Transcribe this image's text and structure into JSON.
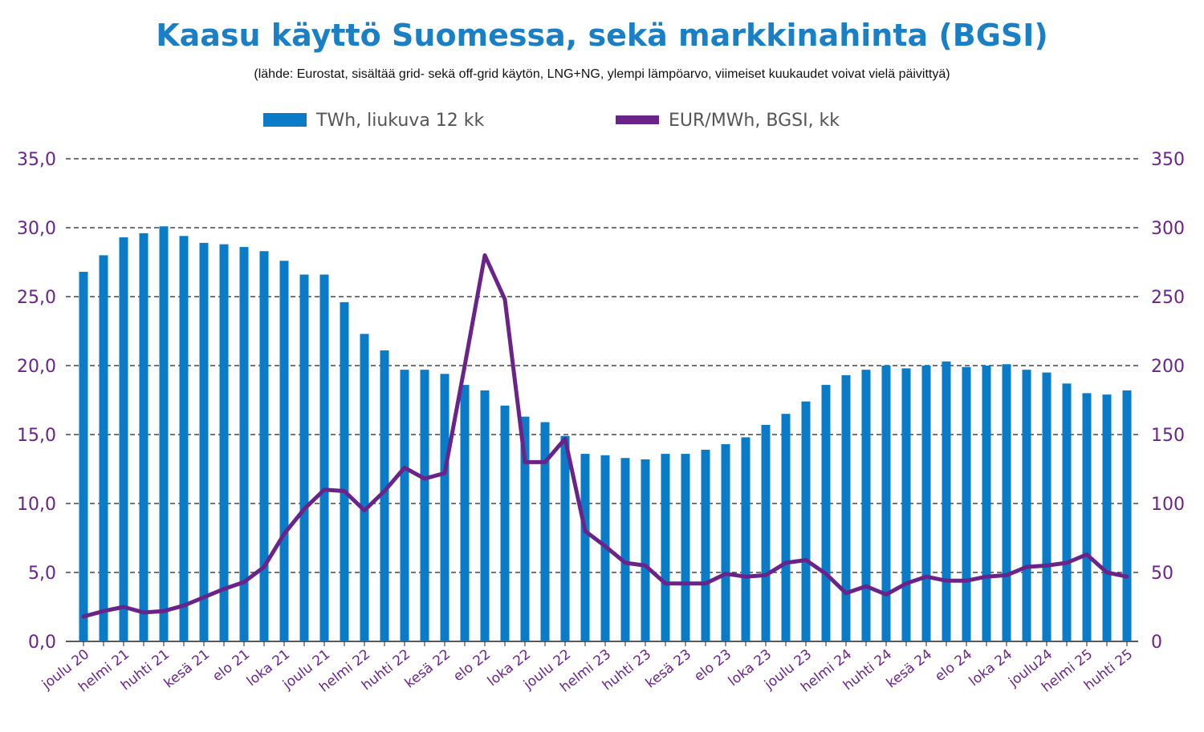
{
  "title": "Kaasu käyttö Suomessa, sekä markkinahinta (BGSI)",
  "subtitle": "(lähde: Eurostat, sisältää grid- sekä off-grid käytön, LNG+NG, ylempi lämpöarvo, viimeiset kuukaudet voivat vielä päivittyä)",
  "colors": {
    "bar": "#0a7bc6",
    "line": "#6a2389",
    "title": "#1a7fc4",
    "axis": "#6a2389"
  },
  "chart_data": {
    "type": "bar",
    "title": "Kaasu käyttö Suomessa, sekä markkinahinta (BGSI)",
    "grid": true,
    "legend_position": "top",
    "y_left": {
      "ylim": [
        0,
        35
      ],
      "ticks": [
        "0,0",
        "5,0",
        "10,0",
        "15,0",
        "20,0",
        "25,0",
        "30,0",
        "35,0"
      ]
    },
    "y_right": {
      "ylim": [
        0,
        350
      ],
      "ticks": [
        "0",
        "50",
        "100",
        "150",
        "200",
        "250",
        "300",
        "350"
      ]
    },
    "x_tick_labels": [
      "joulu 20",
      "helmi 21",
      "huhti 21",
      "kesä 21",
      "elo 21",
      "loka 21",
      "joulu 21",
      "helmi 22",
      "huhti 22",
      "kesä 22",
      "elo 22",
      "loka 22",
      "joulu 22",
      "helmi 23",
      "huhti 23",
      "kesä 23",
      "elo 23",
      "loka 23",
      "joulu 23",
      "helmi 24",
      "huhti 24",
      "kesä 24",
      "elo 24",
      "loka 24",
      "joulu24",
      "helmi 25",
      "huhti 25"
    ],
    "series": [
      {
        "name": "TWh, liukuva 12 kk",
        "type": "bar",
        "axis": "left",
        "values": [
          26.8,
          28.0,
          29.3,
          29.6,
          30.1,
          29.4,
          28.9,
          28.8,
          28.6,
          28.3,
          27.6,
          26.6,
          26.6,
          24.6,
          22.3,
          21.1,
          19.7,
          19.7,
          19.4,
          18.6,
          18.2,
          17.1,
          16.3,
          15.9,
          14.9,
          13.6,
          13.5,
          13.3,
          13.2,
          13.6,
          13.6,
          13.9,
          14.3,
          14.8,
          15.7,
          16.5,
          17.4,
          18.6,
          19.3,
          19.7,
          20.0,
          19.8,
          20.0,
          20.3,
          19.9,
          20.0,
          20.1,
          19.7,
          19.5,
          18.7,
          18.0,
          17.9,
          18.2
        ]
      },
      {
        "name": "EUR/MWh, BGSI, kk",
        "type": "line",
        "axis": "right",
        "values": [
          18,
          22,
          25,
          21,
          22,
          26,
          32,
          38,
          43,
          54,
          78,
          96,
          110,
          109,
          95,
          109,
          126,
          118,
          122,
          200,
          280,
          248,
          130,
          130,
          147,
          80,
          69,
          57,
          55,
          42,
          42,
          42,
          49,
          47,
          48,
          57,
          59,
          49,
          35,
          40,
          34,
          42,
          47,
          44,
          44,
          47,
          48,
          54,
          55,
          57,
          63,
          50,
          47
        ]
      }
    ]
  }
}
